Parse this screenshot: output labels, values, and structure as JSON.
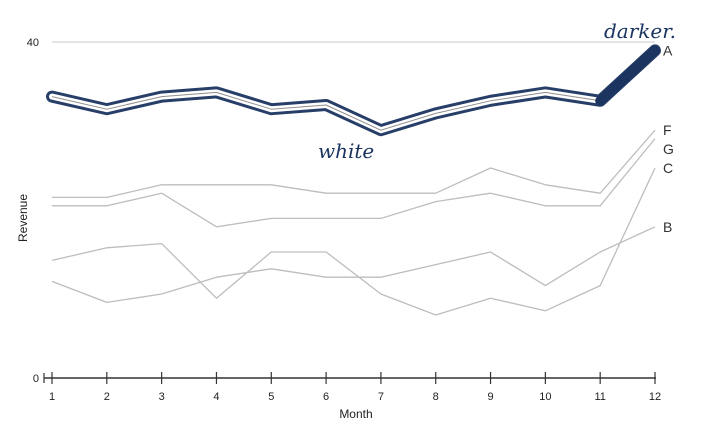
{
  "chart_data": {
    "type": "line",
    "title": "",
    "xlabel": "Month",
    "ylabel": "Revenue",
    "x": [
      1,
      2,
      3,
      4,
      5,
      6,
      7,
      8,
      9,
      10,
      11,
      12
    ],
    "xlim": [
      1,
      12
    ],
    "ylim": [
      0,
      40
    ],
    "y_ticks": [
      0,
      40
    ],
    "grid": "horizontal line at 40",
    "series": [
      {
        "name": "A",
        "values": [
          33.5,
          32,
          33.5,
          34,
          32,
          32.5,
          29.5,
          31.5,
          33,
          34,
          33,
          39
        ]
      },
      {
        "name": "F",
        "values": [
          21.5,
          21.5,
          23,
          23,
          23,
          22,
          22,
          22,
          25,
          23,
          22,
          29.5
        ]
      },
      {
        "name": "G",
        "values": [
          20.5,
          20.5,
          22,
          18,
          19,
          19,
          19,
          21,
          22,
          20.5,
          20.5,
          28.5
        ]
      },
      {
        "name": "C",
        "values": [
          14,
          15.5,
          16,
          9.5,
          15,
          15,
          10,
          7.5,
          9.5,
          8,
          11,
          25
        ]
      },
      {
        "name": "B",
        "values": [
          11.5,
          9,
          10,
          12,
          13,
          12,
          12,
          13.5,
          15,
          11,
          15,
          18
        ]
      }
    ],
    "annotations": {
      "handwritten_top": "darker.",
      "handwritten_mid": "white"
    },
    "series_colors": {
      "A": "#8f8f8f",
      "F": "#bdbdbd",
      "G": "#bdbdbd",
      "C": "#bdbdbd",
      "B": "#bdbdbd"
    },
    "highlight_color": "#1b3560"
  }
}
